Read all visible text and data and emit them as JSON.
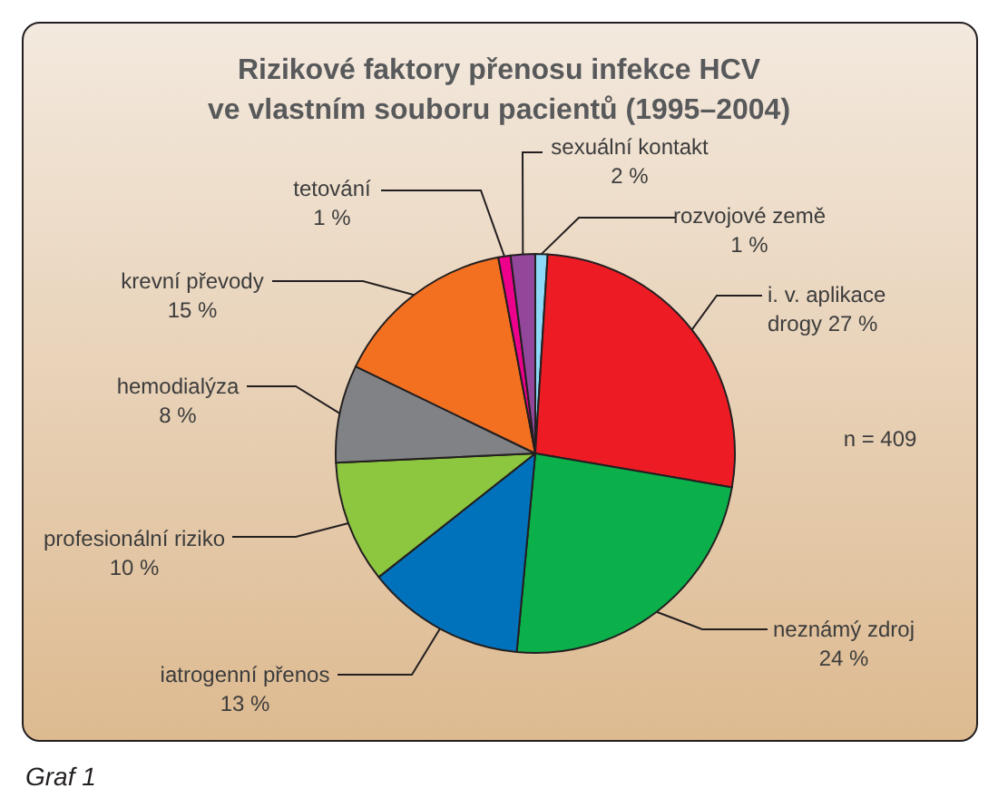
{
  "chart_data": {
    "type": "pie",
    "title": "Rizikové faktory přenosu infekce HCV\nve vlastním souboru pacientů (1995–2004)",
    "categories": [
      "rozvojové země",
      "i. v. aplikace drogy",
      "neznámý zdroj",
      "iatrogenní přenos",
      "profesionální riziko",
      "hemodialýza",
      "krevní převody",
      "tetování",
      "sexuální kontakt"
    ],
    "values": [
      1,
      27,
      24,
      13,
      10,
      8,
      15,
      1,
      2
    ],
    "value_labels": [
      "1 %",
      "27 %",
      "24 %",
      "13 %",
      "10 %",
      "8 %",
      "15 %",
      "1 %",
      "2 %"
    ],
    "colors": [
      "#8ed8f8",
      "#ed1c24",
      "#0bb04b",
      "#0072bc",
      "#8dc63f",
      "#808285",
      "#f37021",
      "#ec008c",
      "#92479b"
    ],
    "annotations": [
      "n = 409",
      "Graf 1"
    ]
  }
}
